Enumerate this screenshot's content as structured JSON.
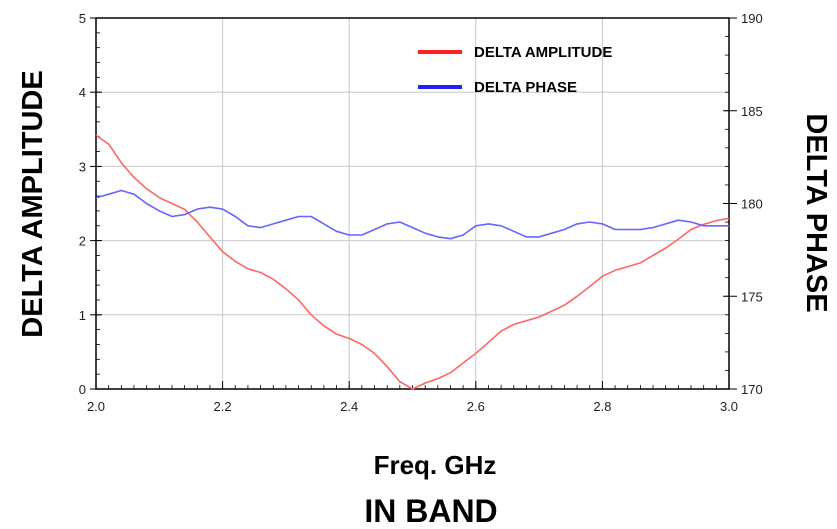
{
  "chart_data": {
    "type": "line",
    "title": "",
    "xlabel": "Freq. GHz",
    "caption": "IN BAND",
    "ylabel_left": "DELTA AMPLITUDE",
    "ylabel_right": "DELTA PHASE",
    "xlim": [
      2.0,
      3.0
    ],
    "ylim_left": [
      0,
      5
    ],
    "ylim_right": [
      170,
      190
    ],
    "x_ticks": [
      "2.0",
      "2.2",
      "2.4",
      "2.6",
      "2.8",
      "3.0"
    ],
    "y_left_ticks": [
      "0",
      "1",
      "2",
      "3",
      "4",
      "5"
    ],
    "y_right_ticks": [
      "170",
      "175",
      "180",
      "185",
      "190"
    ],
    "grid": true,
    "legend_position": "top-right",
    "colors": {
      "amplitude": "#ff6666",
      "phase": "#6666ff",
      "xlabel": "#e8192c"
    },
    "series": [
      {
        "name": "DELTA AMPLITUDE",
        "axis": "left",
        "x": [
          2.0,
          2.02,
          2.04,
          2.06,
          2.08,
          2.1,
          2.12,
          2.14,
          2.16,
          2.18,
          2.2,
          2.22,
          2.24,
          2.26,
          2.28,
          2.3,
          2.32,
          2.34,
          2.36,
          2.38,
          2.4,
          2.42,
          2.44,
          2.46,
          2.48,
          2.5,
          2.52,
          2.54,
          2.56,
          2.58,
          2.6,
          2.62,
          2.64,
          2.66,
          2.68,
          2.7,
          2.72,
          2.74,
          2.76,
          2.78,
          2.8,
          2.82,
          2.84,
          2.86,
          2.88,
          2.9,
          2.92,
          2.94,
          2.96,
          2.98,
          3.0
        ],
        "values": [
          3.42,
          3.3,
          3.05,
          2.85,
          2.7,
          2.58,
          2.5,
          2.42,
          2.25,
          2.05,
          1.85,
          1.72,
          1.62,
          1.57,
          1.48,
          1.35,
          1.2,
          1.0,
          0.85,
          0.74,
          0.68,
          0.6,
          0.48,
          0.3,
          0.1,
          0.0,
          0.08,
          0.14,
          0.22,
          0.35,
          0.48,
          0.63,
          0.78,
          0.87,
          0.92,
          0.97,
          1.05,
          1.13,
          1.25,
          1.38,
          1.52,
          1.6,
          1.65,
          1.7,
          1.8,
          1.9,
          2.02,
          2.15,
          2.22,
          2.27,
          2.3
        ]
      },
      {
        "name": "DELTA PHASE",
        "axis": "right",
        "x": [
          2.0,
          2.02,
          2.04,
          2.06,
          2.08,
          2.1,
          2.12,
          2.14,
          2.16,
          2.18,
          2.2,
          2.22,
          2.24,
          2.26,
          2.28,
          2.3,
          2.32,
          2.34,
          2.36,
          2.38,
          2.4,
          2.42,
          2.44,
          2.46,
          2.48,
          2.5,
          2.52,
          2.54,
          2.56,
          2.58,
          2.6,
          2.62,
          2.64,
          2.66,
          2.68,
          2.7,
          2.72,
          2.74,
          2.76,
          2.78,
          2.8,
          2.82,
          2.84,
          2.86,
          2.88,
          2.9,
          2.92,
          2.94,
          2.96,
          2.98,
          3.0
        ],
        "values": [
          180.3,
          180.5,
          180.7,
          180.5,
          180.0,
          179.6,
          179.3,
          179.4,
          179.7,
          179.8,
          179.7,
          179.3,
          178.8,
          178.7,
          178.9,
          179.1,
          179.3,
          179.3,
          178.9,
          178.5,
          178.3,
          178.3,
          178.6,
          178.9,
          179.0,
          178.7,
          178.4,
          178.2,
          178.1,
          178.3,
          178.8,
          178.9,
          178.8,
          178.5,
          178.2,
          178.2,
          178.4,
          178.6,
          178.9,
          179.0,
          178.9,
          178.6,
          178.6,
          178.6,
          178.7,
          178.9,
          179.1,
          179.0,
          178.8,
          178.8,
          178.8
        ]
      }
    ]
  }
}
